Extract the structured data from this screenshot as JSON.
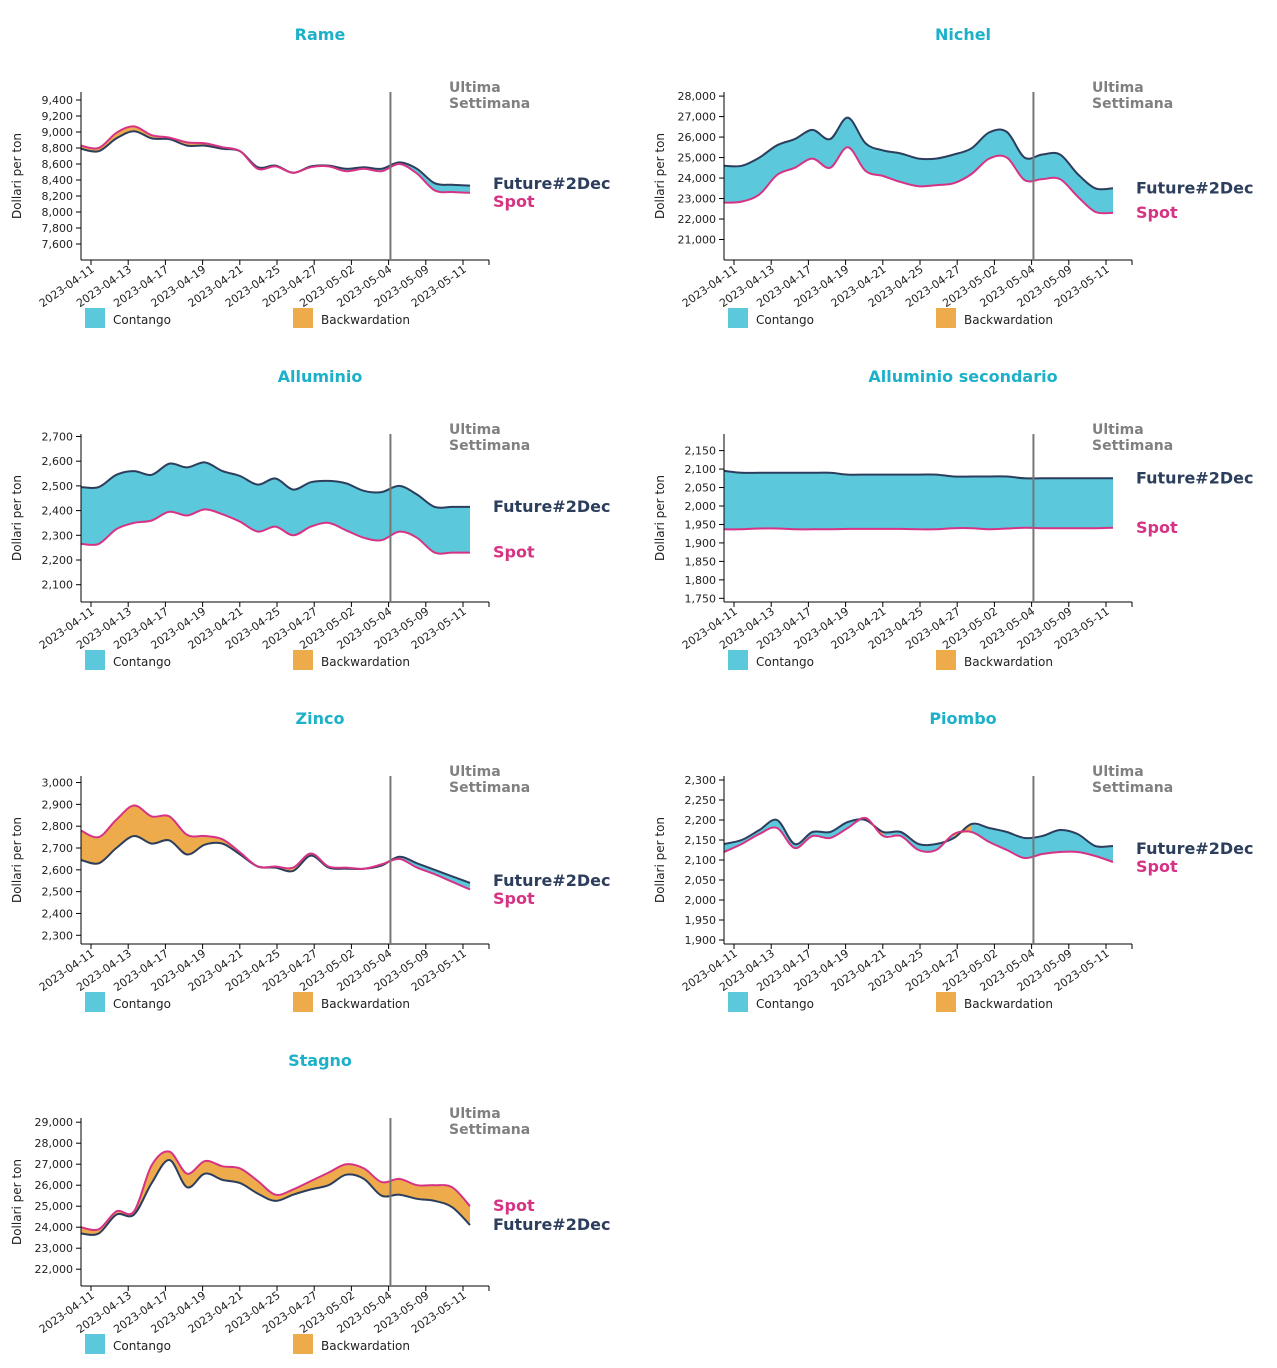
{
  "colors": {
    "title": "#1cb0c9",
    "contango": "#5bc8dc",
    "backwardation": "#eeab4c",
    "future_line": "#2c3e5c",
    "spot_line": "#d63384",
    "vline": "#777777",
    "annotation": "#808080"
  },
  "legend": {
    "contango": "Contango",
    "backwardation": "Backwardation"
  },
  "annotation": [
    "Ultima",
    "Settimana"
  ],
  "ylabel": "Dollari per ton",
  "future_label": "Future#2Dec",
  "spot_label": "Spot",
  "xticks": [
    "2023-04-11",
    "2023-04-13",
    "2023-04-17",
    "2023-04-19",
    "2023-04-21",
    "2023-04-25",
    "2023-04-27",
    "2023-05-02",
    "2023-05-04",
    "2023-05-09",
    "2023-05-11"
  ],
  "chart_data": [
    {
      "type": "area",
      "title": "Rame",
      "ylabel": "Dollari per ton",
      "ylim": [
        7400,
        9500
      ],
      "yticks": [
        7600,
        7800,
        8000,
        8200,
        8400,
        8600,
        8800,
        9000,
        9200,
        9400
      ],
      "vline_index": 17.5,
      "series": [
        {
          "name": "Future#2Dec",
          "values": [
            8790,
            8760,
            8920,
            9010,
            8920,
            8910,
            8830,
            8830,
            8790,
            8760,
            8560,
            8580,
            8490,
            8570,
            8580,
            8540,
            8560,
            8540,
            8620,
            8540,
            8360,
            8340,
            8330
          ]
        },
        {
          "name": "Spot",
          "values": [
            8830,
            8800,
            8990,
            9070,
            8960,
            8930,
            8870,
            8860,
            8810,
            8760,
            8540,
            8570,
            8490,
            8560,
            8570,
            8510,
            8540,
            8510,
            8600,
            8480,
            8270,
            8250,
            8240
          ]
        }
      ]
    },
    {
      "type": "area",
      "title": "Nichel",
      "ylabel": "Dollari per ton",
      "ylim": [
        20000,
        28200
      ],
      "yticks": [
        21000,
        22000,
        23000,
        24000,
        25000,
        26000,
        27000,
        28000
      ],
      "vline_index": 17.5,
      "series": [
        {
          "name": "Future#2Dec",
          "values": [
            24600,
            24600,
            25000,
            25600,
            25900,
            26350,
            25900,
            26950,
            25700,
            25350,
            25200,
            24950,
            24950,
            25150,
            25450,
            26230,
            26250,
            25000,
            25150,
            25150,
            24200,
            23500,
            23500
          ]
        },
        {
          "name": "Spot",
          "values": [
            22800,
            22850,
            23200,
            24150,
            24500,
            24950,
            24500,
            25500,
            24350,
            24100,
            23800,
            23600,
            23650,
            23750,
            24200,
            24950,
            25000,
            23900,
            23950,
            23950,
            23100,
            22350,
            22300
          ]
        }
      ]
    },
    {
      "type": "area",
      "title": "Alluminio",
      "ylabel": "Dollari per ton",
      "ylim": [
        2030,
        2710
      ],
      "yticks": [
        2100,
        2200,
        2300,
        2400,
        2500,
        2600,
        2700
      ],
      "vline_index": 17.5,
      "series": [
        {
          "name": "Future#2Dec",
          "values": [
            2495,
            2495,
            2545,
            2560,
            2545,
            2590,
            2575,
            2595,
            2560,
            2540,
            2505,
            2530,
            2485,
            2515,
            2520,
            2510,
            2480,
            2475,
            2500,
            2465,
            2415,
            2415,
            2415
          ]
        },
        {
          "name": "Spot",
          "values": [
            2265,
            2265,
            2325,
            2350,
            2360,
            2395,
            2380,
            2405,
            2385,
            2355,
            2315,
            2335,
            2300,
            2335,
            2350,
            2320,
            2290,
            2280,
            2315,
            2290,
            2230,
            2230,
            2230
          ]
        }
      ]
    },
    {
      "type": "area",
      "title": "Alluminio secondario",
      "ylabel": "Dollari per ton",
      "ylim": [
        1740,
        2195
      ],
      "yticks": [
        1750,
        1800,
        1850,
        1900,
        1950,
        2000,
        2050,
        2100,
        2150
      ],
      "vline_index": 17.5,
      "series": [
        {
          "name": "Future#2Dec",
          "values": [
            2095,
            2090,
            2090,
            2090,
            2090,
            2090,
            2090,
            2085,
            2085,
            2085,
            2085,
            2085,
            2085,
            2080,
            2080,
            2080,
            2080,
            2075,
            2075,
            2075,
            2075,
            2075,
            2075
          ]
        },
        {
          "name": "Spot",
          "values": [
            1937,
            1937,
            1939,
            1939,
            1937,
            1937,
            1937,
            1938,
            1938,
            1938,
            1938,
            1937,
            1937,
            1940,
            1940,
            1937,
            1939,
            1941,
            1940,
            1940,
            1940,
            1940,
            1941
          ]
        }
      ]
    },
    {
      "type": "area",
      "title": "Zinco",
      "ylabel": "Dollari per ton",
      "ylim": [
        2260,
        3030
      ],
      "yticks": [
        2300,
        2400,
        2500,
        2600,
        2700,
        2800,
        2900,
        3000
      ],
      "vline_index": 17.5,
      "series": [
        {
          "name": "Future#2Dec",
          "values": [
            2645,
            2630,
            2700,
            2755,
            2720,
            2735,
            2670,
            2715,
            2720,
            2670,
            2615,
            2610,
            2595,
            2665,
            2610,
            2605,
            2605,
            2620,
            2660,
            2630,
            2600,
            2570,
            2540
          ]
        },
        {
          "name": "Spot",
          "values": [
            2780,
            2750,
            2830,
            2895,
            2845,
            2845,
            2760,
            2755,
            2740,
            2680,
            2615,
            2615,
            2610,
            2675,
            2615,
            2610,
            2605,
            2625,
            2650,
            2610,
            2580,
            2545,
            2510
          ]
        }
      ]
    },
    {
      "type": "area",
      "title": "Piombo",
      "ylabel": "Dollari per ton",
      "ylim": [
        1890,
        2310
      ],
      "yticks": [
        1900,
        1950,
        2000,
        2050,
        2100,
        2150,
        2200,
        2250,
        2300
      ],
      "vline_index": 17.5,
      "series": [
        {
          "name": "Future#2Dec",
          "values": [
            2140,
            2150,
            2175,
            2200,
            2140,
            2170,
            2170,
            2195,
            2200,
            2170,
            2170,
            2140,
            2140,
            2155,
            2190,
            2180,
            2170,
            2155,
            2160,
            2175,
            2165,
            2135,
            2135
          ]
        },
        {
          "name": "Spot",
          "values": [
            2120,
            2140,
            2165,
            2180,
            2130,
            2160,
            2155,
            2180,
            2205,
            2160,
            2160,
            2125,
            2125,
            2165,
            2170,
            2145,
            2125,
            2105,
            2115,
            2120,
            2120,
            2110,
            2095
          ]
        }
      ]
    },
    {
      "type": "area",
      "title": "Stagno",
      "ylabel": "Dollari per ton",
      "ylim": [
        21200,
        29200
      ],
      "yticks": [
        22000,
        23000,
        24000,
        25000,
        26000,
        27000,
        28000,
        29000
      ],
      "vline_index": 17.5,
      "series": [
        {
          "name": "Future#2Dec",
          "values": [
            23700,
            23700,
            24600,
            24600,
            26100,
            27200,
            25900,
            26550,
            26250,
            26100,
            25600,
            25250,
            25550,
            25800,
            26000,
            26500,
            26300,
            25500,
            25550,
            25350,
            25250,
            24950,
            24100
          ]
        },
        {
          "name": "Spot",
          "values": [
            24000,
            23900,
            24750,
            24750,
            26950,
            27600,
            26550,
            27150,
            26900,
            26800,
            26200,
            25550,
            25800,
            26200,
            26600,
            27000,
            26800,
            26150,
            26300,
            26000,
            26000,
            25900,
            25000
          ]
        }
      ]
    }
  ]
}
